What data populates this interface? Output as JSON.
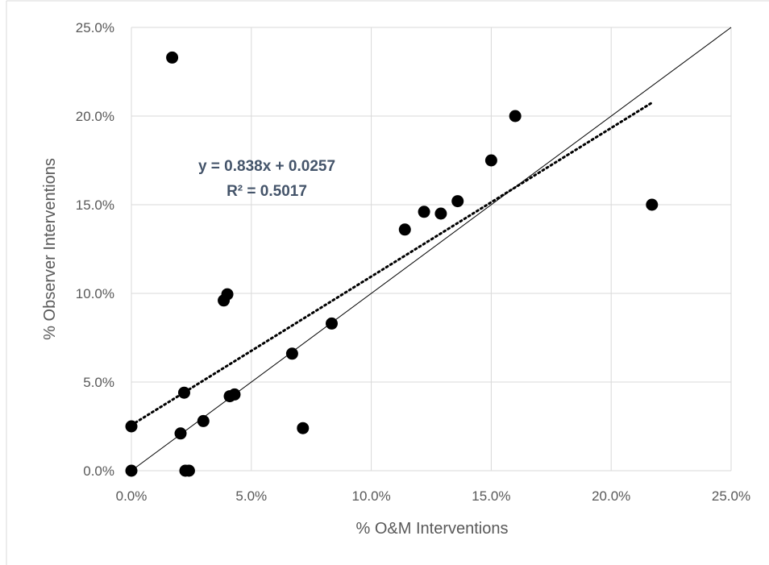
{
  "chart_data": {
    "type": "scatter",
    "title": "",
    "xlabel": "% O&M Interventions",
    "ylabel": "% Observer Interventions",
    "xlim": [
      0,
      0.25
    ],
    "ylim": [
      0,
      0.25
    ],
    "x_ticks": [
      "0.0%",
      "5.0%",
      "10.0%",
      "15.0%",
      "20.0%",
      "25.0%"
    ],
    "y_ticks": [
      "0.0%",
      "5.0%",
      "10.0%",
      "15.0%",
      "20.0%",
      "25.0%"
    ],
    "grid": true,
    "legend": "none",
    "series": [
      {
        "type": "scatter",
        "color": "#000000",
        "points": [
          {
            "x": 0.0,
            "y": 0.025
          },
          {
            "x": 0.0,
            "y": 0.0
          },
          {
            "x": 0.017,
            "y": 0.233
          },
          {
            "x": 0.0205,
            "y": 0.021
          },
          {
            "x": 0.022,
            "y": 0.044
          },
          {
            "x": 0.0225,
            "y": 0.0
          },
          {
            "x": 0.024,
            "y": 0.0
          },
          {
            "x": 0.03,
            "y": 0.028
          },
          {
            "x": 0.0385,
            "y": 0.096
          },
          {
            "x": 0.04,
            "y": 0.0995
          },
          {
            "x": 0.041,
            "y": 0.042
          },
          {
            "x": 0.043,
            "y": 0.043
          },
          {
            "x": 0.067,
            "y": 0.066
          },
          {
            "x": 0.0715,
            "y": 0.024
          },
          {
            "x": 0.0835,
            "y": 0.083
          },
          {
            "x": 0.114,
            "y": 0.136
          },
          {
            "x": 0.122,
            "y": 0.146
          },
          {
            "x": 0.129,
            "y": 0.145
          },
          {
            "x": 0.136,
            "y": 0.152
          },
          {
            "x": 0.15,
            "y": 0.175
          },
          {
            "x": 0.16,
            "y": 0.2
          },
          {
            "x": 0.217,
            "y": 0.15
          }
        ]
      },
      {
        "type": "line",
        "style": "solid",
        "color": "#000000",
        "points": [
          {
            "x": 0.0,
            "y": 0.0
          },
          {
            "x": 0.25,
            "y": 0.25
          }
        ]
      },
      {
        "type": "trendline",
        "style": "dotted",
        "color": "#000000",
        "slope": 0.838,
        "intercept": 0.0257,
        "x_range": [
          0.0,
          0.217
        ]
      }
    ],
    "annotation": {
      "equation": "y = 0.838x + 0.0257",
      "r_squared": "R² = 0.5017"
    }
  }
}
